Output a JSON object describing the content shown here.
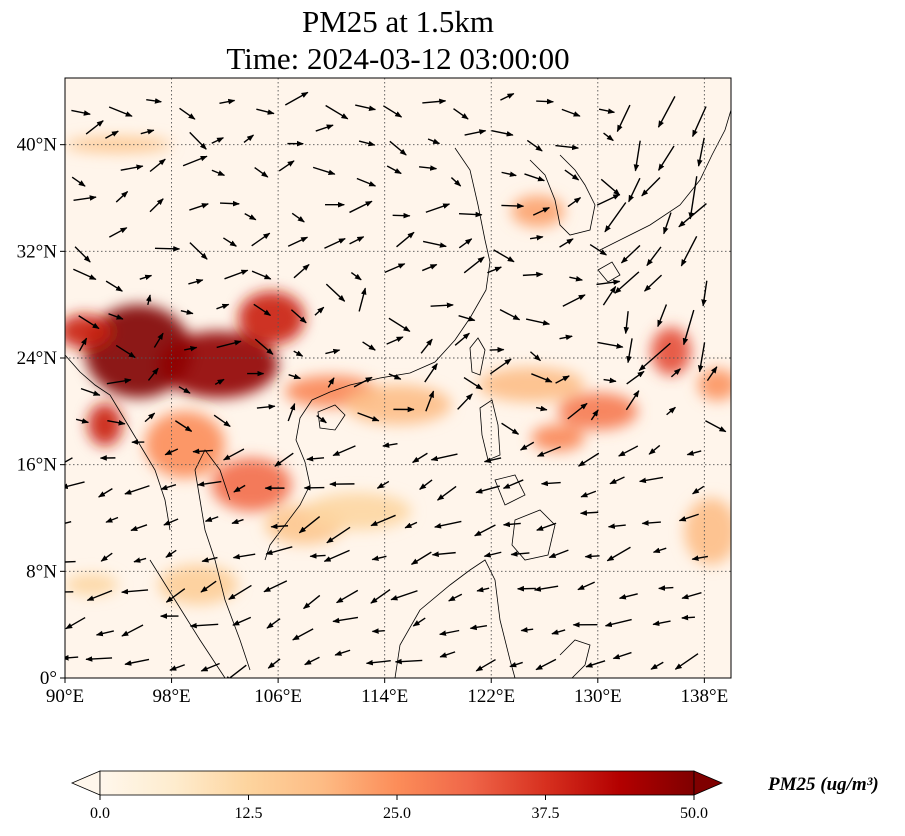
{
  "title": {
    "line1": "PM25 at 1.5km",
    "line2": "Time: 2024-03-12 03:00:00"
  },
  "map": {
    "projection": "PlateCarree",
    "lon_range": [
      90,
      140
    ],
    "lat_range": [
      0,
      45
    ],
    "lon_ticks": [
      {
        "value": 90,
        "label": "90°E"
      },
      {
        "value": 98,
        "label": "98°E"
      },
      {
        "value": 106,
        "label": "106°E"
      },
      {
        "value": 114,
        "label": "114°E"
      },
      {
        "value": 122,
        "label": "122°E"
      },
      {
        "value": 130,
        "label": "130°E"
      },
      {
        "value": 138,
        "label": "138°E"
      }
    ],
    "lat_ticks": [
      {
        "value": 0,
        "label": "0°"
      },
      {
        "value": 8,
        "label": "8°N"
      },
      {
        "value": 16,
        "label": "16°N"
      },
      {
        "value": 24,
        "label": "24°N"
      },
      {
        "value": 32,
        "label": "32°N"
      },
      {
        "value": 40,
        "label": "40°N"
      }
    ],
    "gridlines": true,
    "gridline_style": "dotted",
    "field_background": "#fff5eb",
    "hotspots": [
      {
        "lon": 95.5,
        "lat": 24.5,
        "rlon": 4.0,
        "rlat": 3.5,
        "value": 50
      },
      {
        "lon": 101.5,
        "lat": 23.5,
        "rlon": 4.5,
        "rlat": 2.5,
        "value": 48
      },
      {
        "lon": 105.5,
        "lat": 27.0,
        "rlon": 2.5,
        "rlat": 2.0,
        "value": 40
      },
      {
        "lon": 91.5,
        "lat": 26.0,
        "rlon": 2.0,
        "rlat": 1.3,
        "value": 40
      },
      {
        "lon": 93.0,
        "lat": 19.0,
        "rlon": 1.3,
        "rlat": 1.6,
        "value": 40
      },
      {
        "lon": 104.0,
        "lat": 14.5,
        "rlon": 3.0,
        "rlat": 2.0,
        "value": 30
      },
      {
        "lon": 99.0,
        "lat": 17.5,
        "rlon": 3.0,
        "rlat": 2.5,
        "value": 25
      },
      {
        "lon": 110.0,
        "lat": 21.5,
        "rlon": 3.5,
        "rlat": 1.2,
        "value": 26
      },
      {
        "lon": 115.0,
        "lat": 20.5,
        "rlon": 4.0,
        "rlat": 1.5,
        "value": 18
      },
      {
        "lon": 125.0,
        "lat": 22.0,
        "rlon": 4.0,
        "rlat": 1.3,
        "value": 18
      },
      {
        "lon": 130.0,
        "lat": 20.0,
        "rlon": 3.0,
        "rlat": 1.4,
        "value": 28
      },
      {
        "lon": 127.0,
        "lat": 18.0,
        "rlon": 2.0,
        "rlat": 1.0,
        "value": 26
      },
      {
        "lon": 135.5,
        "lat": 24.5,
        "rlon": 1.5,
        "rlat": 1.8,
        "value": 34
      },
      {
        "lon": 139.0,
        "lat": 22.0,
        "rlon": 1.5,
        "rlat": 1.2,
        "value": 24
      },
      {
        "lon": 138.5,
        "lat": 11.0,
        "rlon": 2.0,
        "rlat": 2.5,
        "value": 18
      },
      {
        "lon": 125.5,
        "lat": 35.0,
        "rlon": 2.0,
        "rlat": 1.2,
        "value": 22
      },
      {
        "lon": 94.0,
        "lat": 40.0,
        "rlon": 4.0,
        "rlat": 0.6,
        "value": 16
      },
      {
        "lon": 108.0,
        "lat": 11.5,
        "rlon": 3.0,
        "rlat": 1.5,
        "value": 16
      },
      {
        "lon": 112.0,
        "lat": 12.5,
        "rlon": 4.0,
        "rlat": 1.4,
        "value": 12
      },
      {
        "lon": 100.0,
        "lat": 7.0,
        "rlon": 3.0,
        "rlat": 1.5,
        "value": 14
      },
      {
        "lon": 92.0,
        "lat": 7.0,
        "rlon": 2.0,
        "rlat": 0.8,
        "value": 12
      }
    ]
  },
  "colorbar": {
    "cmap": "OrRd",
    "vmin": 0.0,
    "vmax": 50.0,
    "extend": "both",
    "ticks": [
      "0.0",
      "12.5",
      "25.0",
      "37.5",
      "50.0"
    ],
    "label": "PM25 (ug/m³)"
  }
}
